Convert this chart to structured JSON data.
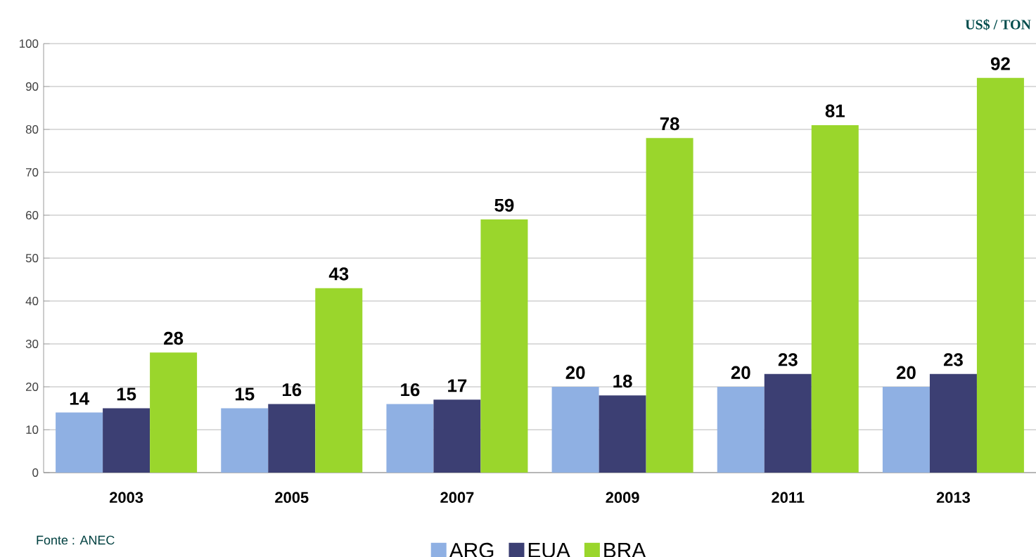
{
  "chart_data": {
    "type": "bar",
    "ylabel": "US$ / TON",
    "categories": [
      "2003",
      "2005",
      "2007",
      "2009",
      "2011",
      "2013"
    ],
    "series": [
      {
        "name": "ARG",
        "color": "#8fb0e3",
        "values": [
          14,
          15,
          16,
          20,
          20,
          20
        ]
      },
      {
        "name": "EUA",
        "color": "#3c3f73",
        "values": [
          15,
          16,
          17,
          18,
          23,
          23
        ]
      },
      {
        "name": "BRA",
        "color": "#9ad62c",
        "values": [
          28,
          43,
          59,
          78,
          81,
          92
        ]
      }
    ],
    "ylim": [
      0,
      100
    ],
    "yticks": [
      0,
      10,
      20,
      30,
      40,
      50,
      60,
      70,
      80,
      90,
      100
    ],
    "grid": "y",
    "legend": "bottom",
    "data_labels": true,
    "annotations": [
      "Fonte : ANEC"
    ]
  }
}
